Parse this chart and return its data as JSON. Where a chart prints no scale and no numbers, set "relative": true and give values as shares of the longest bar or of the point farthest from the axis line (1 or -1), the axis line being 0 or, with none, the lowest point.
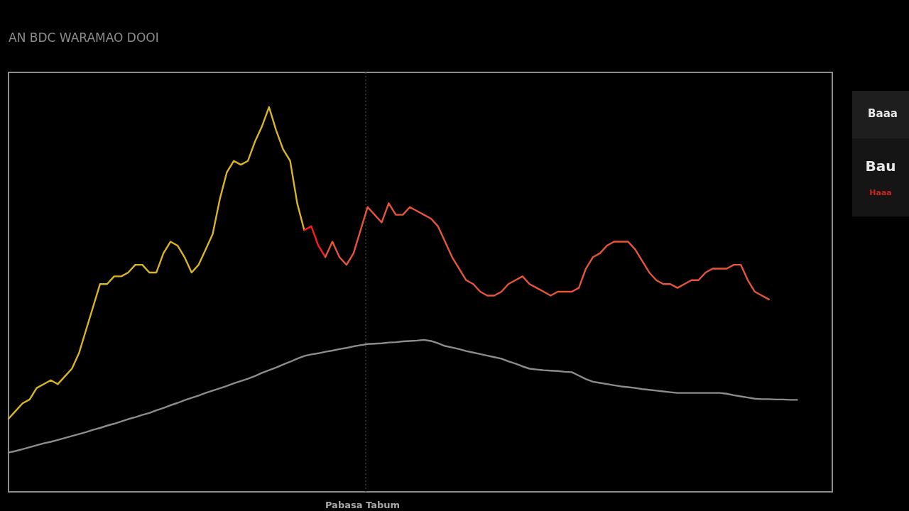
{
  "chart_data": {
    "type": "line",
    "title": "AN BDC WARAMAO DOOI",
    "xlabel": "Pabasa Tabum",
    "relative": true,
    "line_style": "solid",
    "categories": [
      null,
      null,
      null,
      null,
      null,
      null,
      null,
      null,
      null,
      null,
      null,
      null,
      null,
      null,
      null,
      null,
      null,
      null,
      null,
      null,
      null,
      null,
      null,
      null,
      null,
      null,
      null,
      null,
      null,
      null,
      null,
      null,
      null,
      null,
      null,
      null,
      null,
      null,
      null,
      null,
      null,
      null,
      null,
      null,
      null,
      null,
      null,
      null,
      null,
      null,
      null,
      null,
      null,
      null,
      null,
      null,
      null,
      null,
      null,
      null,
      null,
      null,
      null,
      null,
      null,
      null,
      null,
      null,
      null,
      null,
      null,
      null,
      null,
      null,
      null,
      null,
      null,
      null,
      null,
      null,
      null,
      null,
      null,
      null,
      null,
      null,
      null,
      null,
      null,
      null,
      null,
      null,
      null,
      null,
      null,
      null,
      null,
      null,
      null,
      null,
      null,
      null,
      null,
      null,
      null,
      null,
      null,
      null,
      null,
      null,
      null,
      null,
      null,
      null,
      null,
      null,
      null,
      null
    ],
    "series": [
      {
        "color": "#d9b526",
        "values": [
          0.19,
          0.21,
          0.23,
          0.24,
          0.27,
          0.28,
          0.29,
          0.28,
          0.3,
          0.32,
          0.36,
          0.42,
          0.48,
          0.54,
          0.54,
          0.56,
          0.56,
          0.57,
          0.59,
          0.59,
          0.57,
          0.57,
          0.62,
          0.65,
          0.64,
          0.61,
          0.57,
          0.59,
          0.63,
          0.67,
          0.76,
          0.83,
          0.86,
          0.85,
          0.86,
          0.91,
          0.95,
          1.0,
          0.94,
          0.89,
          0.86,
          0.75,
          0.68,
          null,
          null,
          null,
          null,
          null,
          null,
          null,
          null,
          null,
          null,
          null,
          null,
          null,
          null,
          null,
          null,
          null,
          null,
          null,
          null,
          null,
          null,
          null,
          null,
          null,
          null,
          null,
          null,
          null,
          null,
          null,
          null,
          null,
          null,
          null,
          null,
          null,
          null,
          null,
          null,
          null,
          null,
          null,
          null,
          null,
          null,
          null,
          null,
          null,
          null,
          null,
          null,
          null,
          null,
          null,
          null,
          null,
          null,
          null,
          null,
          null,
          null,
          null,
          null,
          null,
          null,
          null,
          null,
          null,
          null,
          null,
          null,
          null,
          null,
          null
        ]
      },
      {
        "color": "#ff1a1a",
        "values": [
          null,
          null,
          null,
          null,
          null,
          null,
          null,
          null,
          null,
          null,
          null,
          null,
          null,
          null,
          null,
          null,
          null,
          null,
          null,
          null,
          null,
          null,
          null,
          null,
          null,
          null,
          null,
          null,
          null,
          null,
          null,
          null,
          null,
          null,
          null,
          null,
          null,
          null,
          null,
          null,
          null,
          null,
          0.68,
          0.69,
          0.64,
          0.61,
          null,
          null,
          null,
          null,
          null,
          null,
          null,
          null,
          null,
          null,
          null,
          null,
          null,
          null,
          null,
          null,
          null,
          null,
          null,
          null,
          null,
          null,
          null,
          null,
          null,
          null,
          null,
          null,
          null,
          null,
          null,
          null,
          null,
          null,
          null,
          null,
          null,
          null,
          null,
          null,
          null,
          null,
          null,
          null,
          null,
          null,
          null,
          null,
          null,
          null,
          null,
          null,
          null,
          null,
          null,
          null,
          null,
          null,
          null,
          null,
          null,
          null,
          null,
          null,
          null,
          null,
          null,
          null,
          null,
          null,
          null,
          null
        ]
      },
      {
        "color": "#e6553a",
        "values": [
          null,
          null,
          null,
          null,
          null,
          null,
          null,
          null,
          null,
          null,
          null,
          null,
          null,
          null,
          null,
          null,
          null,
          null,
          null,
          null,
          null,
          null,
          null,
          null,
          null,
          null,
          null,
          null,
          null,
          null,
          null,
          null,
          null,
          null,
          null,
          null,
          null,
          null,
          null,
          null,
          null,
          null,
          null,
          null,
          null,
          0.61,
          0.65,
          0.61,
          0.59,
          0.62,
          0.68,
          0.74,
          0.72,
          0.7,
          0.75,
          0.72,
          0.72,
          0.74,
          0.73,
          0.72,
          0.71,
          0.69,
          0.65,
          0.61,
          0.58,
          0.55,
          0.54,
          0.52,
          0.51,
          0.51,
          0.52,
          0.54,
          0.55,
          0.56,
          0.54,
          0.53,
          0.52,
          0.51,
          0.52,
          0.52,
          0.52,
          0.53,
          0.58,
          0.61,
          0.62,
          0.64,
          0.65,
          0.65,
          0.65,
          0.63,
          0.6,
          0.57,
          0.55,
          0.54,
          0.54,
          0.53,
          0.54,
          0.55,
          0.55,
          0.57,
          0.58,
          0.58,
          0.58,
          0.59,
          0.59,
          0.55,
          0.52,
          0.51,
          0.5,
          null,
          null,
          null,
          null,
          null,
          null,
          null,
          null,
          null
        ]
      },
      {
        "color": "#8c8c8c",
        "values": [
          0.102,
          0.106,
          0.111,
          0.116,
          0.121,
          0.126,
          0.13,
          0.135,
          0.14,
          0.145,
          0.15,
          0.155,
          0.161,
          0.166,
          0.172,
          0.177,
          0.183,
          0.189,
          0.194,
          0.2,
          0.205,
          0.212,
          0.218,
          0.225,
          0.231,
          0.238,
          0.244,
          0.25,
          0.257,
          0.263,
          0.269,
          0.275,
          0.282,
          0.288,
          0.294,
          0.301,
          0.309,
          0.316,
          0.323,
          0.331,
          0.338,
          0.346,
          0.353,
          0.357,
          0.36,
          0.364,
          0.367,
          0.371,
          0.374,
          0.378,
          0.381,
          0.384,
          0.385,
          0.386,
          0.388,
          0.389,
          0.391,
          0.392,
          0.393,
          0.395,
          0.392,
          0.386,
          0.379,
          0.375,
          0.371,
          0.366,
          0.362,
          0.358,
          0.354,
          0.35,
          0.346,
          0.339,
          0.333,
          0.326,
          0.32,
          0.318,
          0.316,
          0.315,
          0.314,
          0.312,
          0.311,
          0.302,
          0.293,
          0.286,
          0.283,
          0.28,
          0.277,
          0.274,
          0.272,
          0.27,
          0.267,
          0.265,
          0.263,
          0.261,
          0.259,
          0.257,
          0.257,
          0.257,
          0.257,
          0.257,
          0.257,
          0.257,
          0.255,
          0.251,
          0.248,
          0.245,
          0.242,
          0.241,
          0.241,
          0.24,
          0.24,
          0.239,
          0.239,
          null,
          null,
          null,
          null,
          null
        ]
      }
    ],
    "annotations": [
      "Baaa",
      "Bau",
      "Haaa"
    ]
  }
}
